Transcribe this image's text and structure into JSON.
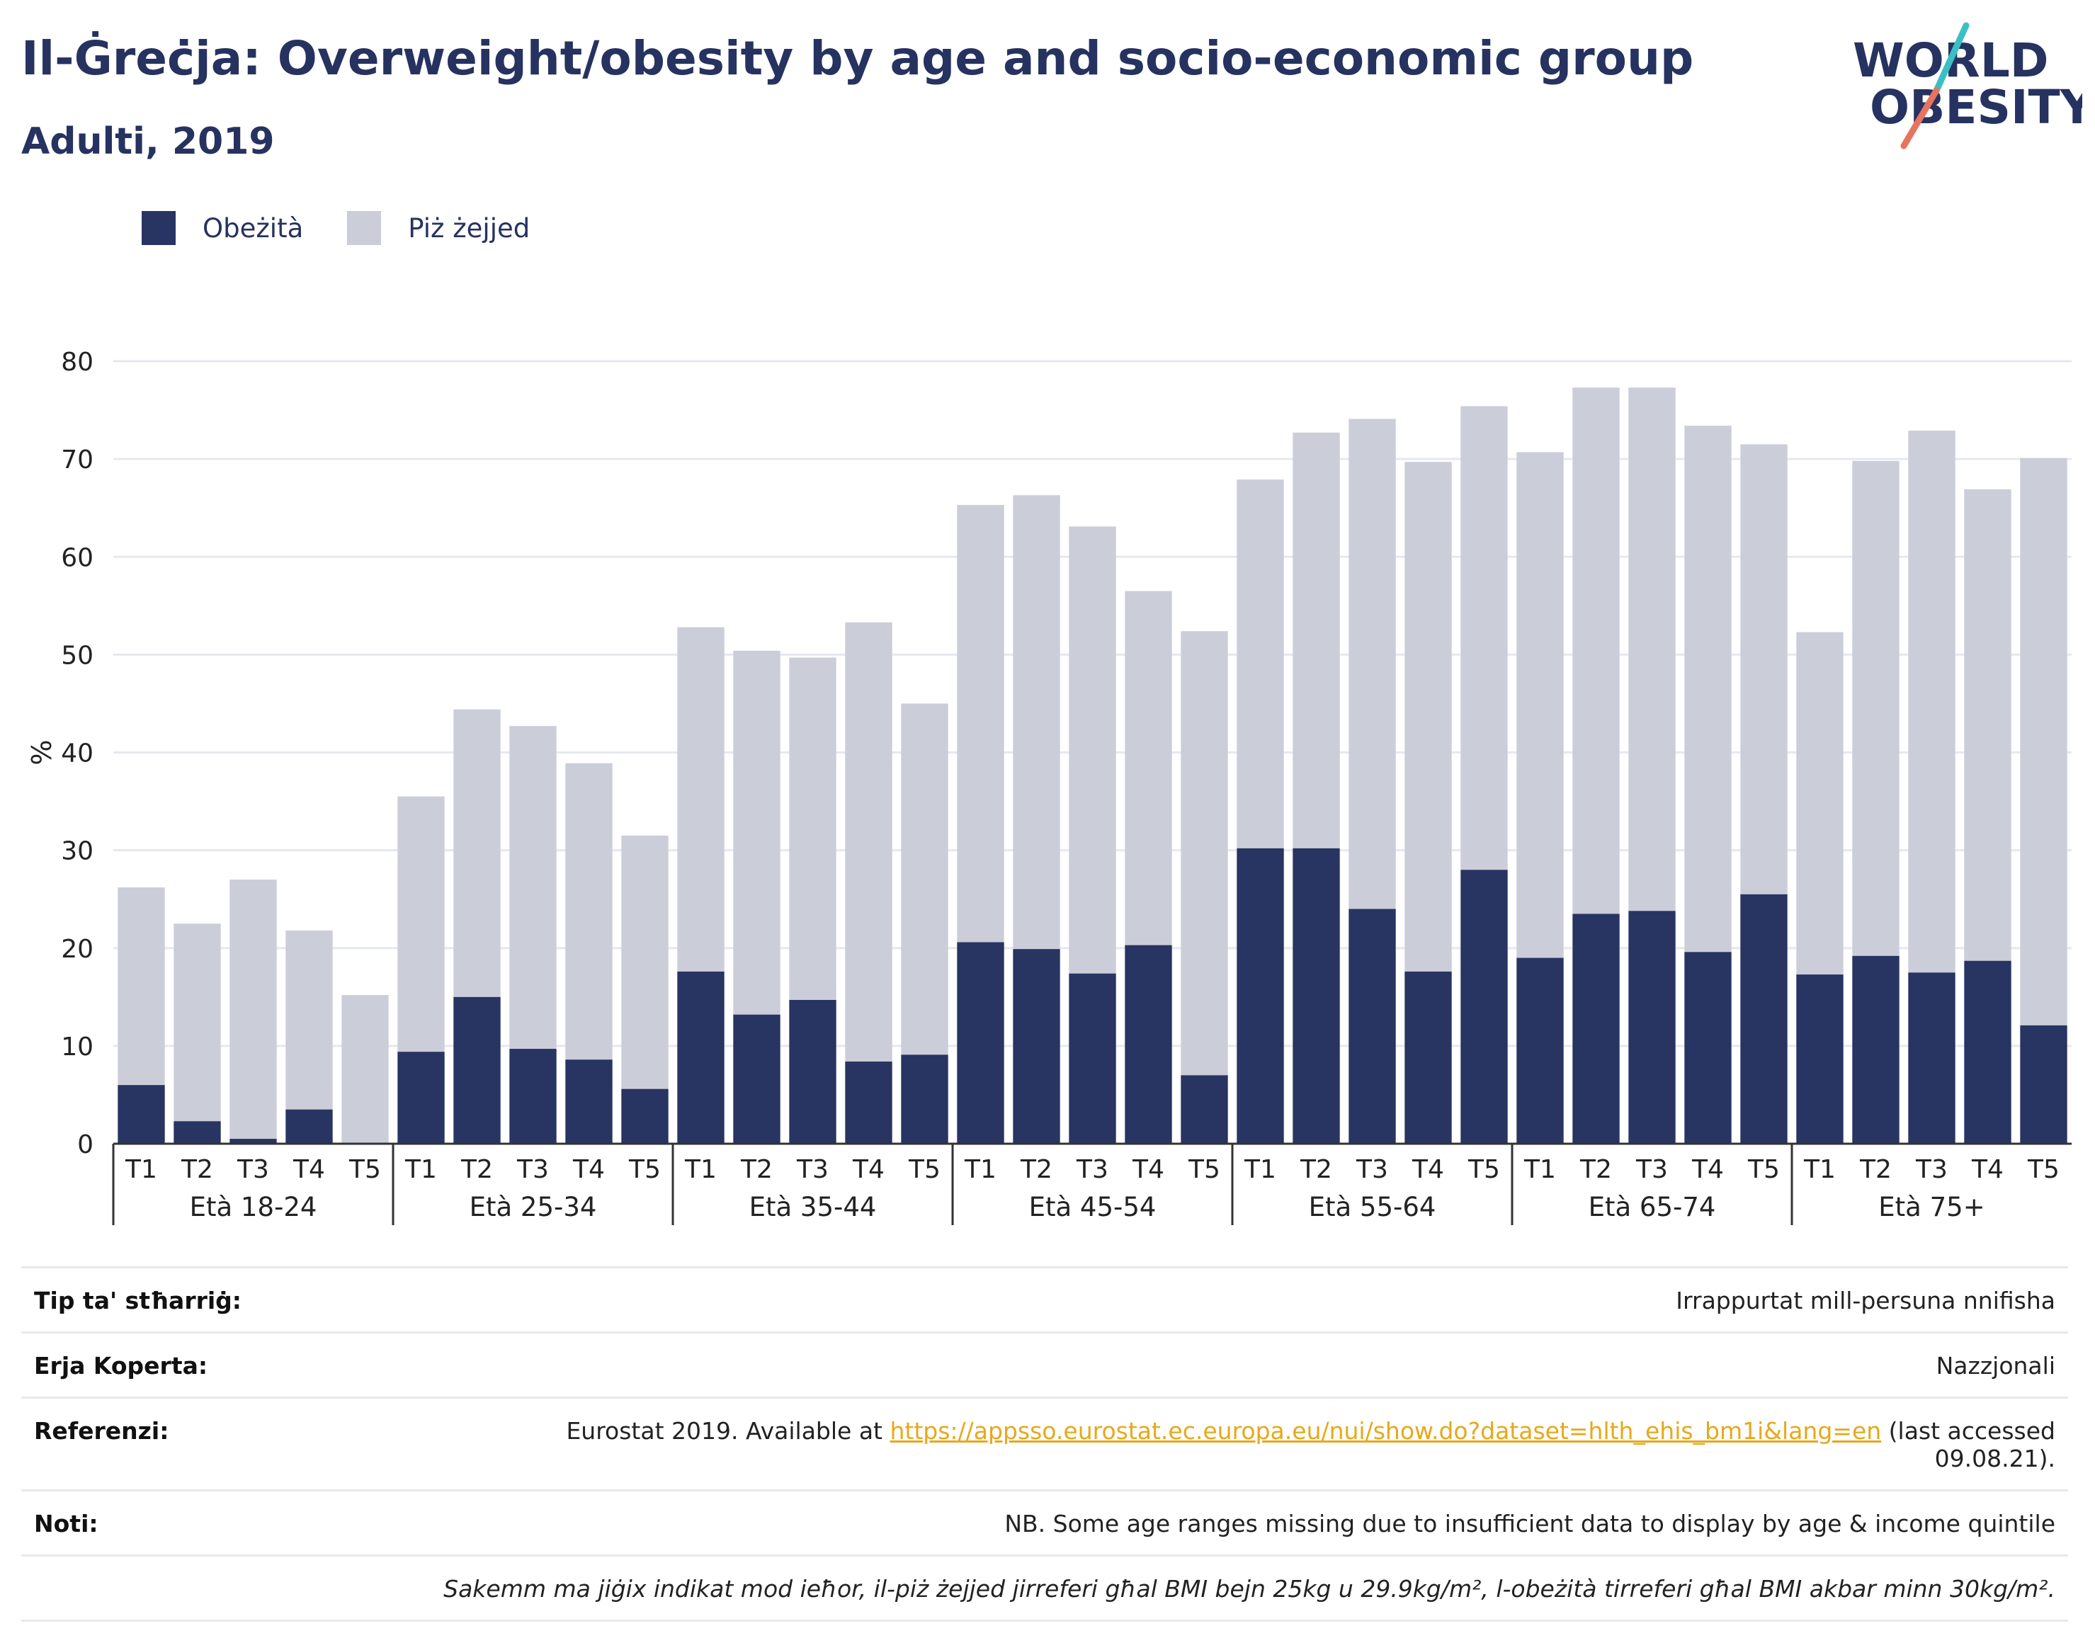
{
  "header": {
    "title": "Il-Ġreċja: Overweight/obesity by age and socio-economic group",
    "subtitle": "Adulti, 2019"
  },
  "logo": {
    "line1": "WORLD",
    "line2": "OBESITY"
  },
  "colors": {
    "obese": "#283461",
    "overweight": "#cbcdd9",
    "text": "#263260",
    "grid": "#e6e8f0",
    "link": "#e7a81b",
    "logo_teal": "#3cbfc4",
    "logo_coral": "#e8735f"
  },
  "legend": [
    {
      "label": "Obeżità",
      "color": "#283461"
    },
    {
      "label": "Piż żejjed",
      "color": "#cbcdd9"
    }
  ],
  "chart_data": {
    "type": "bar",
    "stacked": true,
    "ylabel": "%",
    "ylim": [
      0,
      80
    ],
    "yticks": [
      0,
      10,
      20,
      30,
      40,
      50,
      60,
      70,
      80
    ],
    "grid": true,
    "legend_position": "top-left",
    "groups": [
      "Età 18-24",
      "Età 25-34",
      "Età 35-44",
      "Età 45-54",
      "Età 55-64",
      "Età 65-74",
      "Età 75+"
    ],
    "categories": [
      "T1",
      "T2",
      "T3",
      "T4",
      "T5"
    ],
    "series": [
      {
        "name": "Obeżità",
        "values": [
          [
            6.0,
            2.3,
            0.5,
            3.5,
            0.0
          ],
          [
            9.4,
            15.0,
            9.7,
            8.6,
            5.6
          ],
          [
            17.6,
            13.2,
            14.7,
            8.4,
            9.1
          ],
          [
            20.6,
            19.9,
            17.4,
            20.3,
            7.0
          ],
          [
            30.2,
            30.2,
            24.0,
            17.6,
            28.0
          ],
          [
            19.0,
            23.5,
            23.8,
            19.6,
            25.5
          ],
          [
            17.3,
            19.2,
            17.5,
            18.7,
            12.1
          ]
        ]
      },
      {
        "name": "Piż żejjed",
        "values": [
          [
            20.2,
            20.2,
            26.5,
            18.3,
            15.2
          ],
          [
            26.1,
            29.4,
            33.0,
            30.3,
            25.9
          ],
          [
            35.2,
            37.2,
            35.0,
            44.9,
            35.9
          ],
          [
            44.7,
            46.4,
            45.7,
            36.2,
            45.4
          ],
          [
            37.7,
            42.5,
            50.1,
            52.1,
            47.4
          ],
          [
            51.7,
            53.8,
            53.5,
            53.8,
            46.0
          ],
          [
            35.0,
            50.6,
            55.4,
            48.2,
            58.0
          ]
        ]
      }
    ]
  },
  "meta": {
    "rows": [
      {
        "label": "Tip ta' stħarriġ:",
        "value": "Irrappurtat mill-persuna nnifisha"
      },
      {
        "label": "Erja Koperta:",
        "value": "Nazzjonali"
      }
    ],
    "reference": {
      "label": "Referenzi:",
      "prefix": "Eurostat 2019. Available at ",
      "link": "https://appsso.eurostat.ec.europa.eu/nui/show.do?dataset=hlth_ehis_bm1i&lang=en",
      "suffix_line1": " (last accessed",
      "suffix_line2": "09.08.21)."
    },
    "notes": {
      "label": "Noti:",
      "value": "NB. Some age ranges missing due to insufficient data to display by age & income quintile"
    },
    "footnote": "Sakemm ma jiġix indikat mod ieħor, il-piż żejjed jirreferi għal BMI bejn 25kg u 29.9kg/m², l-obeżità tirreferi għal BMI akbar minn 30kg/m²."
  }
}
